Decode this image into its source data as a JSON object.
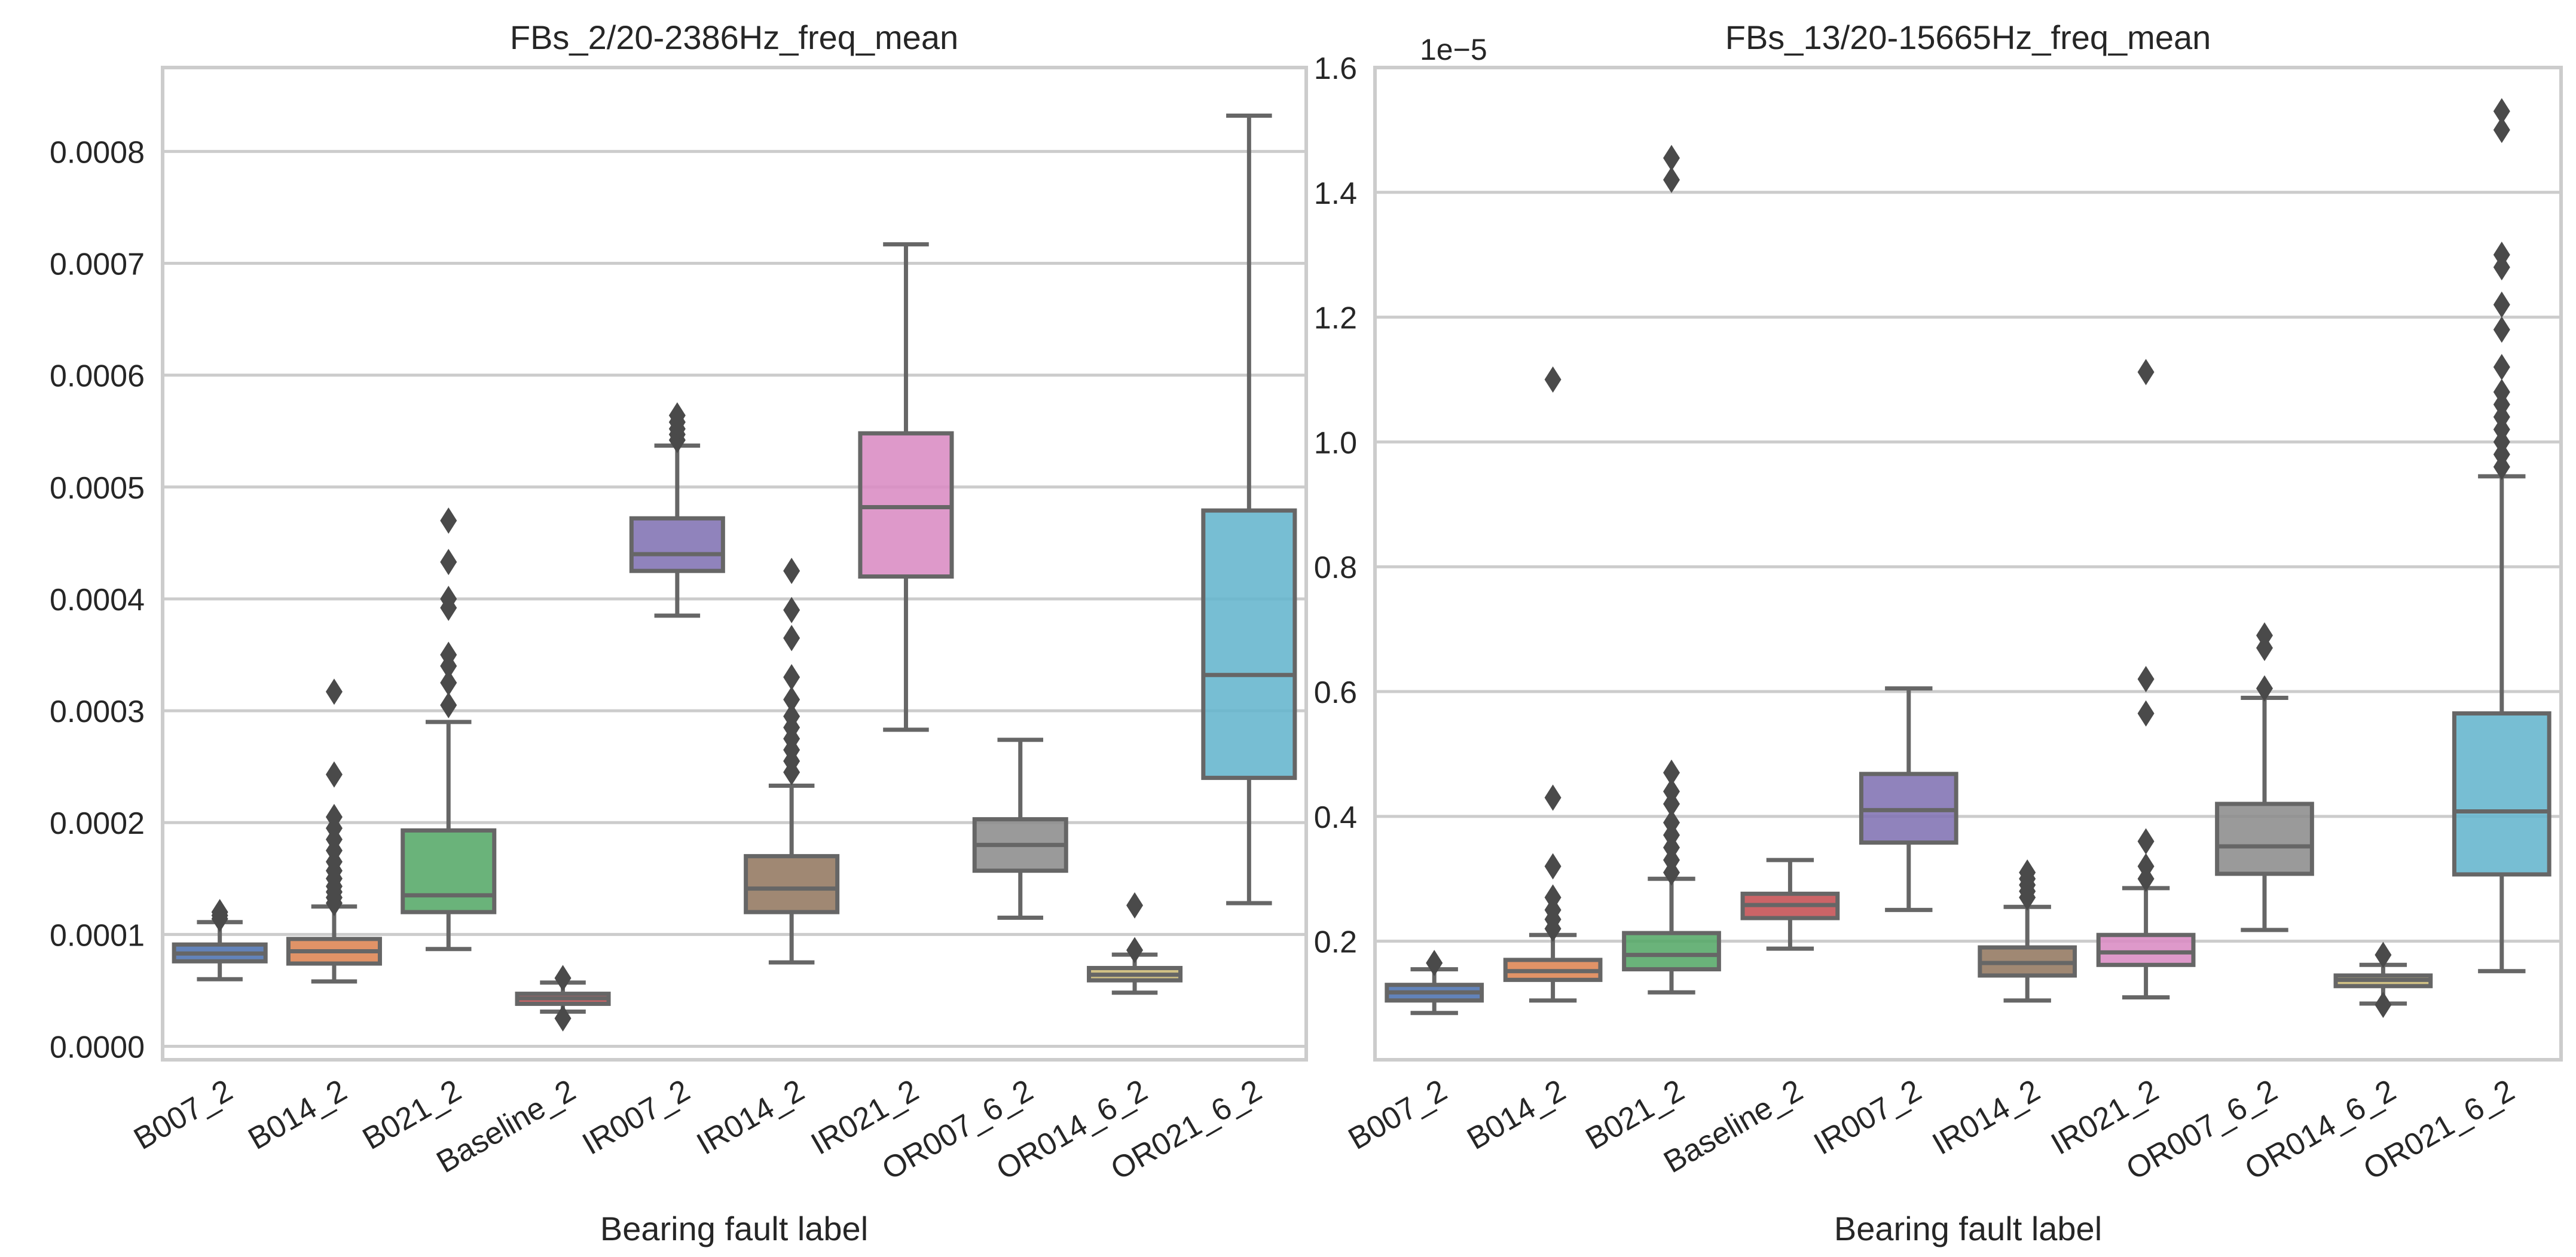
{
  "chart_data": [
    {
      "type": "box",
      "title": "FBs_2/20-2386Hz_freq_mean",
      "xlabel": "Bearing fault label",
      "ylabel": "",
      "offset_label": "",
      "ylim": [
        -1.2e-05,
        0.000875
      ],
      "yticks": [
        0.0,
        0.0001,
        0.0002,
        0.0003,
        0.0004,
        0.0005,
        0.0006,
        0.0007,
        0.0008
      ],
      "ytick_labels": [
        "0.0000",
        "0.0001",
        "0.0002",
        "0.0003",
        "0.0004",
        "0.0005",
        "0.0006",
        "0.0007",
        "0.0008"
      ],
      "grid": "horizontal",
      "categories": [
        "B007_2",
        "B014_2",
        "B021_2",
        "Baseline_2",
        "IR007_2",
        "IR014_2",
        "IR021_2",
        "OR007_6_2",
        "OR014_6_2",
        "OR021_6_2"
      ],
      "colors": [
        "#4c72b0",
        "#dd8452",
        "#55a868",
        "#c44e52",
        "#8172b3",
        "#937860",
        "#da8bc3",
        "#8c8c8c",
        "#ccb974",
        "#64b5cd"
      ],
      "boxes": [
        {
          "whisker_low": 6e-05,
          "q1": 7.6e-05,
          "median": 8.3e-05,
          "q3": 9.1e-05,
          "whisker_high": 0.000111,
          "outliers": [
            0.000114,
            0.000117,
            0.00012
          ]
        },
        {
          "whisker_low": 5.8e-05,
          "q1": 7.4e-05,
          "median": 8.5e-05,
          "q3": 9.6e-05,
          "whisker_high": 0.000125,
          "outliers": [
            0.000128,
            0.000133,
            0.000138,
            0.000143,
            0.00015,
            0.000157,
            0.000165,
            0.000175,
            0.000185,
            0.000195,
            0.000205,
            0.000243,
            0.000317
          ]
        },
        {
          "whisker_low": 8.7e-05,
          "q1": 0.00012,
          "median": 0.000135,
          "q3": 0.000193,
          "whisker_high": 0.00029,
          "outliers": [
            0.000305,
            0.000325,
            0.00034,
            0.00035,
            0.000392,
            0.0004,
            0.000433,
            0.00047
          ]
        },
        {
          "whisker_low": 3.1e-05,
          "q1": 3.8e-05,
          "median": 4.3e-05,
          "q3": 4.7e-05,
          "whisker_high": 5.7e-05,
          "outliers": [
            2.5e-05,
            6.1e-05
          ]
        },
        {
          "whisker_low": 0.000385,
          "q1": 0.000425,
          "median": 0.00044,
          "q3": 0.000472,
          "whisker_high": 0.000537,
          "outliers": [
            0.000542,
            0.000547,
            0.000552,
            0.000558,
            0.000564
          ]
        },
        {
          "whisker_low": 7.5e-05,
          "q1": 0.00012,
          "median": 0.000141,
          "q3": 0.00017,
          "whisker_high": 0.000233,
          "outliers": [
            0.000245,
            0.000255,
            0.000265,
            0.000275,
            0.000285,
            0.000295,
            0.00031,
            0.00033,
            0.000365,
            0.00039,
            0.000425
          ]
        },
        {
          "whisker_low": 0.000283,
          "q1": 0.00042,
          "median": 0.000482,
          "q3": 0.000548,
          "whisker_high": 0.000717,
          "outliers": []
        },
        {
          "whisker_low": 0.000115,
          "q1": 0.000157,
          "median": 0.00018,
          "q3": 0.000203,
          "whisker_high": 0.000274,
          "outliers": []
        },
        {
          "whisker_low": 4.8e-05,
          "q1": 5.9e-05,
          "median": 6.4e-05,
          "q3": 7e-05,
          "whisker_high": 8.2e-05,
          "outliers": [
            8.6e-05,
            0.000126
          ]
        },
        {
          "whisker_low": 0.000128,
          "q1": 0.00024,
          "median": 0.000332,
          "q3": 0.000479,
          "whisker_high": 0.000832,
          "outliers": []
        }
      ]
    },
    {
      "type": "box",
      "title": "FBs_13/20-15665Hz_freq_mean",
      "xlabel": "Bearing fault label",
      "ylabel": "",
      "offset_label": "1e−5",
      "ylim": [
        0.01,
        1.6
      ],
      "yticks": [
        0.2,
        0.4,
        0.6,
        0.8,
        1.0,
        1.2,
        1.4,
        1.6
      ],
      "ytick_labels": [
        "0.2",
        "0.4",
        "0.6",
        "0.8",
        "1.0",
        "1.2",
        "1.4",
        "1.6"
      ],
      "grid": "horizontal",
      "categories": [
        "B007_2",
        "B014_2",
        "B021_2",
        "Baseline_2",
        "IR007_2",
        "IR014_2",
        "IR021_2",
        "OR007_6_2",
        "OR014_6_2",
        "OR021_6_2"
      ],
      "colors": [
        "#4c72b0",
        "#dd8452",
        "#55a868",
        "#c44e52",
        "#8172b3",
        "#937860",
        "#da8bc3",
        "#8c8c8c",
        "#ccb974",
        "#64b5cd"
      ],
      "boxes": [
        {
          "whisker_low": 0.085,
          "q1": 0.105,
          "median": 0.118,
          "q3": 0.13,
          "whisker_high": 0.155,
          "outliers": [
            0.165
          ]
        },
        {
          "whisker_low": 0.105,
          "q1": 0.138,
          "median": 0.152,
          "q3": 0.17,
          "whisker_high": 0.21,
          "outliers": [
            0.22,
            0.235,
            0.25,
            0.27,
            0.32,
            0.43,
            1.1
          ]
        },
        {
          "whisker_low": 0.118,
          "q1": 0.155,
          "median": 0.178,
          "q3": 0.213,
          "whisker_high": 0.3,
          "outliers": [
            0.31,
            0.33,
            0.35,
            0.37,
            0.39,
            0.42,
            0.44,
            0.47,
            1.42,
            1.455
          ]
        },
        {
          "whisker_low": 0.188,
          "q1": 0.237,
          "median": 0.258,
          "q3": 0.276,
          "whisker_high": 0.33,
          "outliers": []
        },
        {
          "whisker_low": 0.25,
          "q1": 0.358,
          "median": 0.41,
          "q3": 0.468,
          "whisker_high": 0.605,
          "outliers": []
        },
        {
          "whisker_low": 0.105,
          "q1": 0.145,
          "median": 0.165,
          "q3": 0.19,
          "whisker_high": 0.255,
          "outliers": [
            0.27,
            0.28,
            0.29,
            0.3,
            0.31
          ]
        },
        {
          "whisker_low": 0.11,
          "q1": 0.162,
          "median": 0.182,
          "q3": 0.21,
          "whisker_high": 0.285,
          "outliers": [
            0.3,
            0.32,
            0.36,
            0.565,
            0.62,
            1.112
          ]
        },
        {
          "whisker_low": 0.218,
          "q1": 0.308,
          "median": 0.352,
          "q3": 0.42,
          "whisker_high": 0.59,
          "outliers": [
            0.605,
            0.67,
            0.69
          ]
        },
        {
          "whisker_low": 0.1,
          "q1": 0.128,
          "median": 0.138,
          "q3": 0.145,
          "whisker_high": 0.162,
          "outliers": [
            0.098,
            0.178
          ]
        },
        {
          "whisker_low": 0.152,
          "q1": 0.307,
          "median": 0.408,
          "q3": 0.565,
          "whisker_high": 0.945,
          "outliers": [
            0.96,
            0.98,
            1.0,
            1.02,
            1.04,
            1.06,
            1.08,
            1.12,
            1.18,
            1.22,
            1.28,
            1.3,
            1.5,
            1.53
          ]
        }
      ]
    }
  ]
}
